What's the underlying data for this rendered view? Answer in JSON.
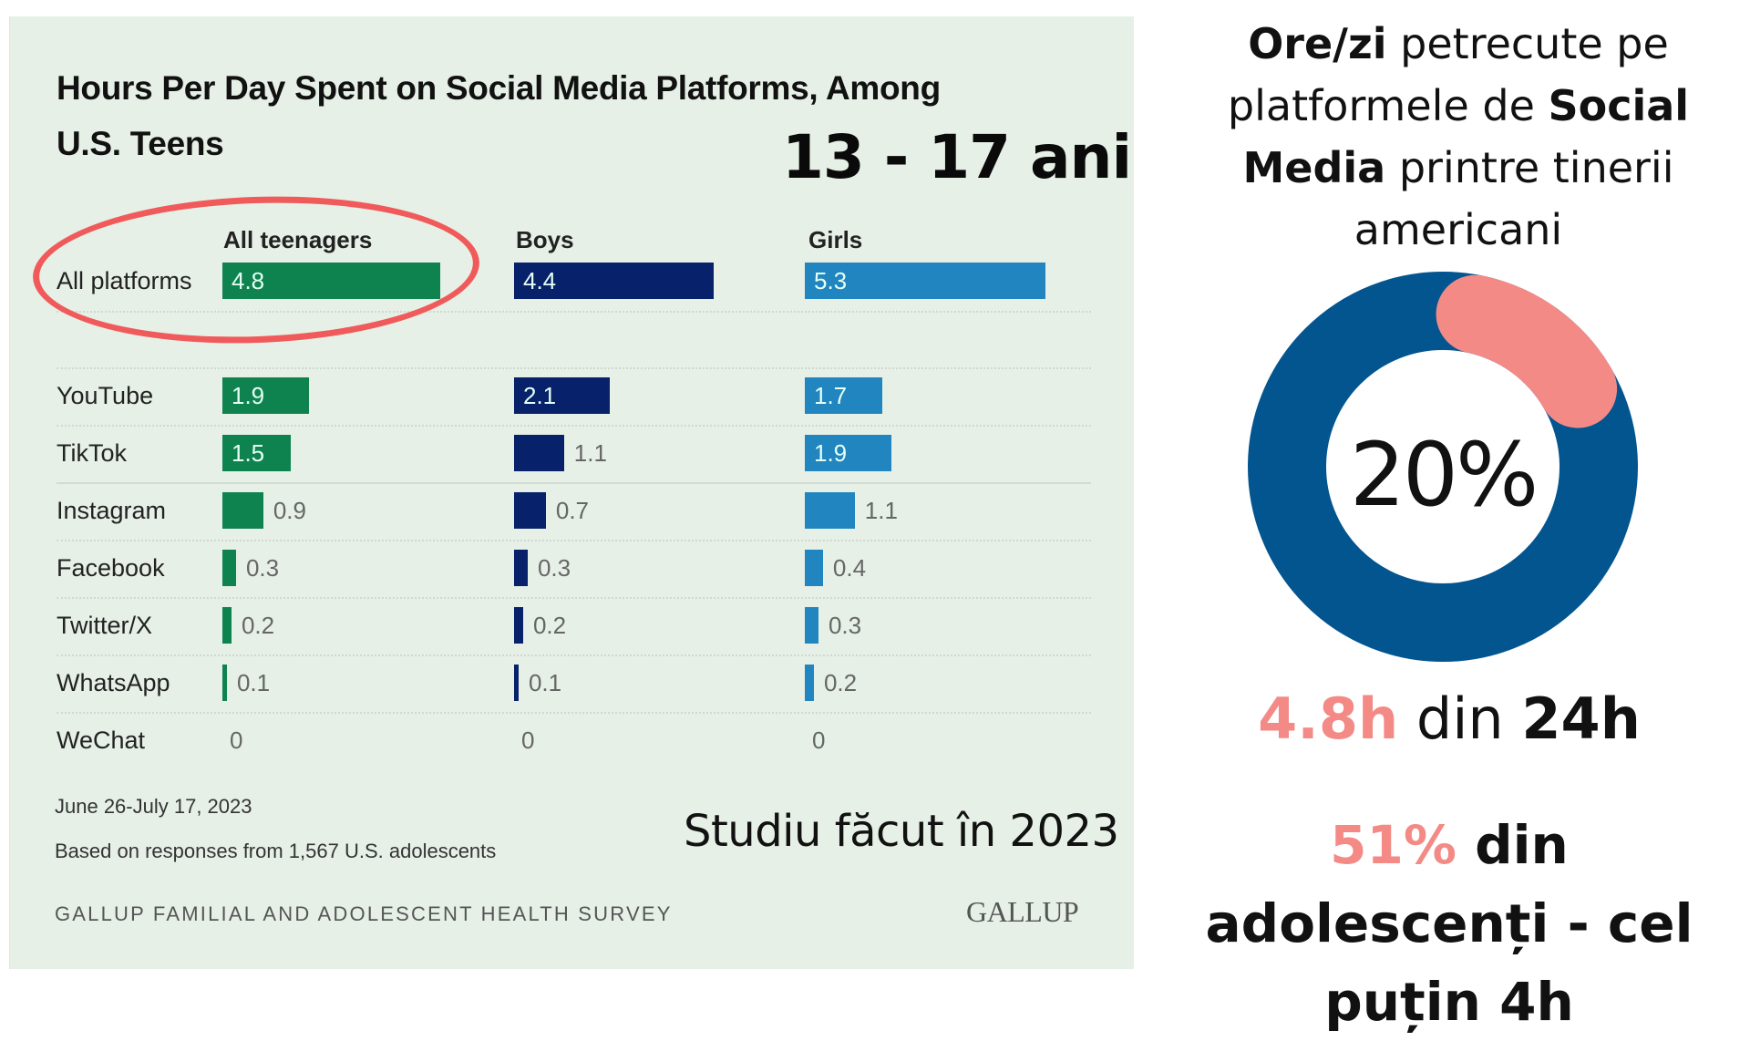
{
  "colors": {
    "all_teenagers": "#0e8350",
    "boys": "#07216a",
    "girls": "#2185c0",
    "highlight": "#f05a5a",
    "donut_track": "#03558f",
    "donut_fill": "#f48a86",
    "accent_text": "#f38a86",
    "panel_bg": "#e6f0e6"
  },
  "chart_data": {
    "type": "bar",
    "orientation": "horizontal",
    "title": "Hours Per Day Spent on Social Media Platforms, Among U.S. Teens",
    "title_line1": "Hours Per Day Spent on Social Media Platforms, Among",
    "title_line2": "U.S. Teens",
    "unit": "hours per day",
    "categories": [
      "All platforms",
      "YouTube",
      "TikTok",
      "Instagram",
      "Facebook",
      "Twitter/X",
      "WhatsApp",
      "WeChat"
    ],
    "series": [
      {
        "name": "All teenagers",
        "values": [
          4.8,
          1.9,
          1.5,
          0.9,
          0.3,
          0.2,
          0.1,
          0
        ]
      },
      {
        "name": "Boys",
        "values": [
          4.4,
          2.1,
          1.1,
          0.7,
          0.3,
          0.2,
          0.1,
          0
        ]
      },
      {
        "name": "Girls",
        "values": [
          5.3,
          1.7,
          1.9,
          1.1,
          0.4,
          0.3,
          0.2,
          0
        ]
      }
    ],
    "value_labels": [
      [
        "4.8",
        "1.9",
        "1.5",
        "0.9",
        "0.3",
        "0.2",
        "0.1",
        "0"
      ],
      [
        "4.4",
        "2.1",
        "1.1",
        "0.7",
        "0.3",
        "0.2",
        "0.1",
        "0"
      ],
      [
        "5.3",
        "1.7",
        "1.9",
        "1.1",
        "0.4",
        "0.3",
        "0.2",
        "0"
      ]
    ],
    "label_inside_min": [
      1.5,
      2.0,
      1.2
    ],
    "highlighted": {
      "series": "All teenagers",
      "category": "All platforms"
    },
    "grid": false,
    "legend": "column headers at top"
  },
  "overlay": {
    "age_range": "13 - 17 ani",
    "study_note": "Studiu făcut în 2023"
  },
  "footer": {
    "dates": "June 26-July 17, 2023",
    "sample": "Based on responses from 1,567 U.S. adolescents",
    "survey": "GALLUP FAMILIAL AND ADOLESCENT HEALTH SURVEY",
    "logo": "GALLUP"
  },
  "right_panel": {
    "heading": {
      "bold1": "Ore/zi",
      "text1": " petrecute pe platformele de ",
      "bold2": "Social Media",
      "text2": " printre tinerii americani"
    },
    "donut": {
      "percent": 20,
      "label": "20%"
    },
    "hours": {
      "value": "4.8h",
      "mid": " din ",
      "total": "24h"
    },
    "teens": {
      "percent": "51%",
      "text": " din adolescenți - cel puțin 4h"
    }
  }
}
